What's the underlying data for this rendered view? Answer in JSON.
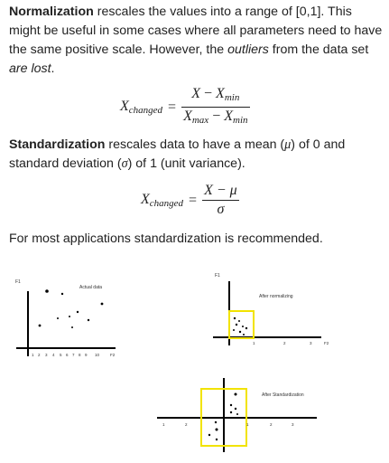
{
  "normalization": {
    "term": "Normalization",
    "text_1": " rescales the values into a range of [0,1]. This might be useful in some cases where all parameters need to have the same positive scale. However, the ",
    "emph_1": "outliers",
    "text_2": " from the data set ",
    "emph_2": "are lost",
    "text_3": "."
  },
  "formula_normalization": {
    "lhs": "X",
    "lhs_sub": "changed",
    "eq": "=",
    "num_a": "X",
    "num_op": " − ",
    "num_b": "X",
    "num_b_sub": "min",
    "den_a": "X",
    "den_a_sub": "max",
    "den_op": " − ",
    "den_b": "X",
    "den_b_sub": "min"
  },
  "standardization": {
    "term": "Standardization",
    "text_1": " rescales data to have a mean (",
    "mu": "μ",
    "text_2": ") of 0 and standard deviation (",
    "sigma": "σ",
    "text_3": ") of 1 (unit variance)."
  },
  "formula_standardization": {
    "lhs": "X",
    "lhs_sub": "changed",
    "eq": "=",
    "num": "X − μ",
    "den": "σ"
  },
  "recommendation": "For most applications standardization is recommended.",
  "figure": {
    "plot1_title": "Actual data",
    "plot1_ylabel": "F1",
    "plot1_xlabel": "F2",
    "plot1_ticks": [
      "1",
      "2",
      "3",
      "4",
      "5",
      "6",
      "7",
      "8",
      "9",
      "10"
    ],
    "plot2_title": "After normalizing",
    "plot2_ylabel": "F1",
    "plot2_xlabel": "F2",
    "plot2_ticks": [
      "1",
      "2",
      "3"
    ],
    "plot3_title": "After Standardization",
    "plot3_ticks": [
      "1",
      "2",
      "3"
    ],
    "box_color": "#f2e300",
    "axis_color": "#000000"
  }
}
